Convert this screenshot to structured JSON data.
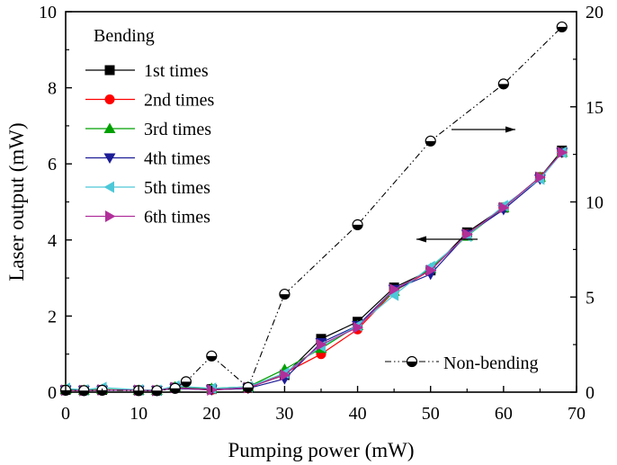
{
  "chart_data": {
    "type": "line",
    "xlabel": "Pumping power (mW)",
    "ylabel": "Laser output (mW)",
    "xlim": [
      0,
      70
    ],
    "ylim_left": [
      0,
      10
    ],
    "ylim_right": [
      0,
      20
    ],
    "x_ticks": [
      0,
      10,
      20,
      30,
      40,
      50,
      60,
      70
    ],
    "y_left_ticks": [
      0,
      2,
      4,
      6,
      8,
      10
    ],
    "y_right_ticks": [
      0,
      5,
      10,
      15,
      20
    ],
    "legend_title": "Bending",
    "legend_position": "top-left",
    "x": [
      0,
      2.5,
      5,
      10,
      12.5,
      15,
      20,
      25,
      30,
      35,
      40,
      45,
      50,
      55,
      60,
      65,
      68
    ],
    "series": [
      {
        "name": "1st times",
        "axis": "left",
        "marker": "square",
        "color": "#000000",
        "values": [
          0.06,
          0.05,
          0.06,
          0.05,
          0.04,
          0.12,
          0.08,
          0.12,
          0.45,
          1.4,
          1.85,
          2.75,
          3.2,
          4.2,
          4.85,
          5.65,
          6.35
        ]
      },
      {
        "name": "2nd times",
        "axis": "left",
        "marker": "circle",
        "color": "#ff0000",
        "values": [
          0.05,
          0.04,
          0.05,
          0.05,
          0.04,
          0.1,
          0.06,
          0.1,
          0.5,
          1.0,
          1.65,
          2.65,
          3.2,
          4.15,
          4.85,
          5.65,
          6.3
        ]
      },
      {
        "name": "3rd times",
        "axis": "left",
        "marker": "triangle-up",
        "color": "#00a000",
        "values": [
          0.07,
          0.05,
          0.07,
          0.05,
          0.05,
          0.14,
          0.1,
          0.14,
          0.6,
          1.15,
          1.75,
          2.65,
          3.25,
          4.1,
          4.85,
          5.65,
          6.3
        ]
      },
      {
        "name": "4th times",
        "axis": "left",
        "marker": "triangle-down",
        "color": "#1c1c96",
        "values": [
          0.05,
          0.04,
          0.05,
          0.05,
          0.04,
          0.1,
          0.06,
          0.1,
          0.35,
          1.3,
          1.75,
          2.7,
          3.1,
          4.15,
          4.8,
          5.6,
          6.3
        ]
      },
      {
        "name": "5th times",
        "axis": "left",
        "marker": "triangle-left",
        "color": "#4dc8d8",
        "values": [
          0.1,
          0.06,
          0.12,
          0.06,
          0.05,
          0.16,
          0.1,
          0.14,
          0.5,
          1.2,
          1.75,
          2.55,
          3.3,
          4.1,
          4.9,
          5.6,
          6.3
        ]
      },
      {
        "name": "6th times",
        "axis": "left",
        "marker": "triangle-right",
        "color": "#b0309a",
        "values": [
          0.05,
          0.04,
          0.06,
          0.05,
          0.04,
          0.12,
          0.06,
          0.12,
          0.45,
          1.25,
          1.7,
          2.7,
          3.2,
          4.15,
          4.85,
          5.65,
          6.3
        ]
      },
      {
        "name": "Non-bending",
        "axis": "right",
        "marker": "half-circle",
        "color": "#000000",
        "x": [
          0,
          2.5,
          5,
          10,
          12.5,
          15,
          16.5,
          20,
          25,
          30,
          40,
          50,
          60,
          68
        ],
        "values": [
          0.1,
          0.08,
          0.1,
          0.08,
          0.08,
          0.2,
          0.55,
          1.9,
          0.25,
          5.15,
          8.8,
          13.2,
          16.2,
          19.2
        ]
      }
    ],
    "annotations": [
      {
        "type": "arrow",
        "direction": "right",
        "points_to": "right axis"
      },
      {
        "type": "arrow",
        "direction": "left",
        "points_to": "left axis"
      }
    ]
  }
}
